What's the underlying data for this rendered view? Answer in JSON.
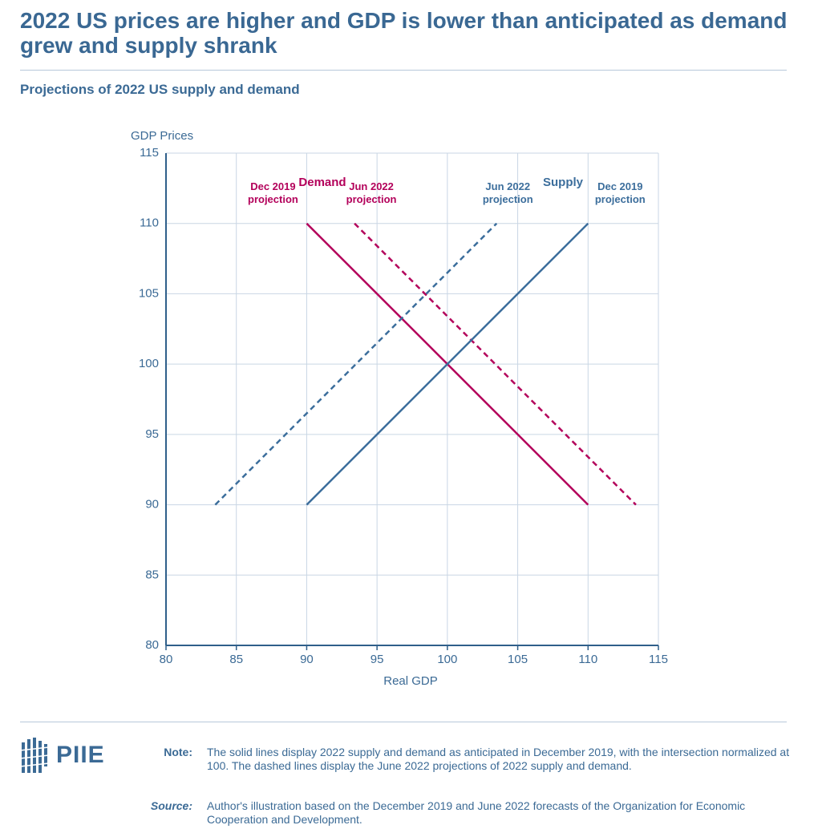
{
  "chart_data": {
    "type": "line",
    "title": "2022 US prices are higher and GDP is lower than anticipated as demand grew and supply shrank",
    "subtitle": "Projections of 2022 US supply and demand",
    "x_label": "Real GDP",
    "y_label": "GDP Prices",
    "xlim": [
      80,
      115
    ],
    "xticks": [
      80,
      85,
      90,
      95,
      100,
      105,
      110,
      115
    ],
    "ylim": [
      80,
      115
    ],
    "yticks": [
      80,
      85,
      90,
      95,
      100,
      105,
      110,
      115
    ],
    "grid": true,
    "annotations": [
      "Demand",
      "Supply"
    ],
    "series": [
      {
        "name": "Dec 2019 projection",
        "color": "#b3005a",
        "dashed": false,
        "x": [
          90,
          110
        ],
        "values": [
          110,
          90
        ]
      },
      {
        "name": "Jun 2022 projection",
        "color": "#b3005a",
        "dashed": true,
        "x": [
          93.4,
          113.4
        ],
        "values": [
          110,
          90
        ]
      },
      {
        "name": "Jun 2022 projection",
        "color": "#3c6e9c",
        "dashed": true,
        "x": [
          83.5,
          103.5
        ],
        "values": [
          90,
          110
        ]
      },
      {
        "name": "Dec 2019 projection",
        "color": "#3c6e9c",
        "dashed": false,
        "x": [
          90,
          110
        ],
        "values": [
          90,
          110
        ]
      }
    ]
  },
  "logo": "PIIE",
  "note_label": "Note:",
  "note": "The solid lines display 2022 supply and demand as anticipated in December 2019, with the intersection normalized at 100. The dashed lines display the June 2022 projections of 2022 supply and demand.",
  "source_label": "Source:",
  "source": "Author's illustration based on the December 2019 and June 2022 forecasts of the Organization for Economic Cooperation and Development."
}
